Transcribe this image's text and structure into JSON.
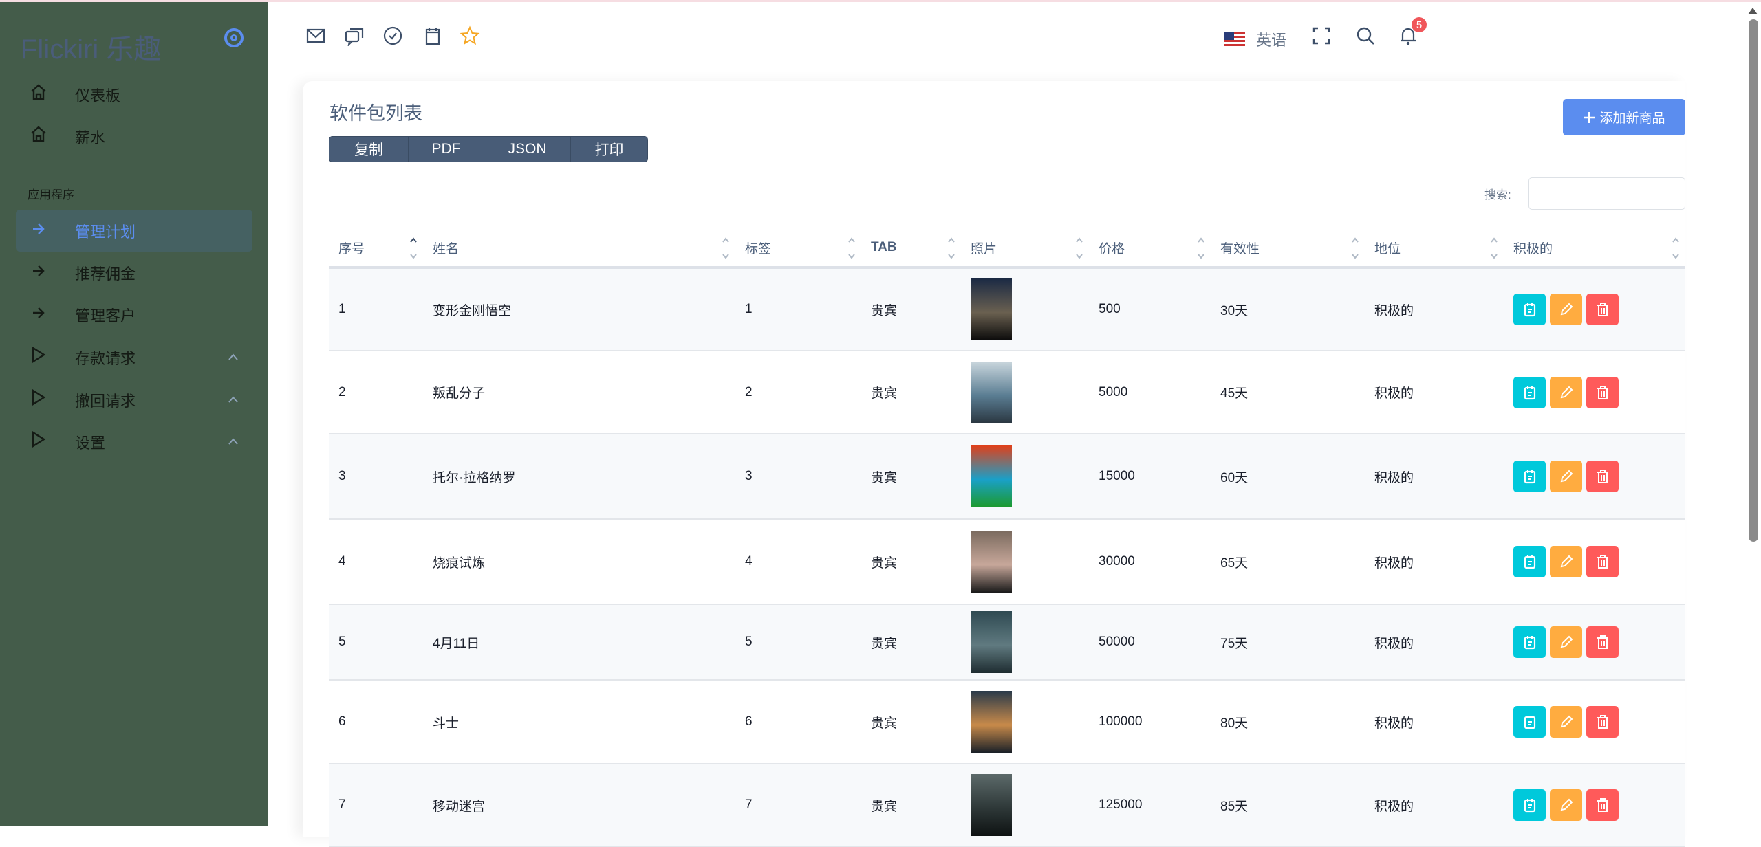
{
  "sidebar": {
    "logo": "Flickiri 乐趣",
    "items": [
      {
        "label": "仪表板",
        "icon": "home-icon"
      },
      {
        "label": "薪水",
        "icon": "home-icon"
      }
    ],
    "section_label": "应用程序",
    "app_items": [
      {
        "label": "管理计划",
        "icon": "arrow-right-icon",
        "active": true
      },
      {
        "label": "推荐佣金",
        "icon": "arrow-right-icon"
      },
      {
        "label": "管理客户",
        "icon": "arrow-right-icon"
      },
      {
        "label": "存款请求",
        "icon": "play-icon",
        "expandable": true
      },
      {
        "label": "撤回请求",
        "icon": "play-icon",
        "expandable": true
      },
      {
        "label": "设置",
        "icon": "play-icon",
        "expandable": true
      }
    ]
  },
  "topbar": {
    "language": "英语",
    "notification_count": "5"
  },
  "page": {
    "title": "软件包列表",
    "export_buttons": [
      "复制",
      "PDF",
      "JSON",
      "打印"
    ],
    "add_button": "添加新商品",
    "search_label": "搜索:",
    "search_value": ""
  },
  "table": {
    "columns": [
      "序号",
      "姓名",
      "标签",
      "TAB",
      "照片",
      "价格",
      "有效性",
      "地位",
      "积极的"
    ],
    "rows": [
      {
        "id": "1",
        "name": "变形金刚悟空",
        "tag": "1",
        "tab": "贵宾",
        "price": "500",
        "validity": "30天",
        "status": "积极的",
        "poster": [
          "#1b2a44",
          "#6a6050",
          "#0b0b0b"
        ]
      },
      {
        "id": "2",
        "name": "叛乱分子",
        "tag": "2",
        "tab": "贵宾",
        "price": "5000",
        "validity": "45天",
        "status": "积极的",
        "poster": [
          "#c9d6dd",
          "#5a7d92",
          "#2a3640"
        ]
      },
      {
        "id": "3",
        "name": "托尔·拉格纳罗",
        "tag": "3",
        "tab": "贵宾",
        "price": "15000",
        "validity": "60天",
        "status": "积极的",
        "poster": [
          "#e0401a",
          "#1aa0c8",
          "#1c9a2c"
        ]
      },
      {
        "id": "4",
        "name": "烧痕试炼",
        "tag": "4",
        "tab": "贵宾",
        "price": "30000",
        "validity": "65天",
        "status": "积极的",
        "poster": [
          "#7a6a5e",
          "#c7a79a",
          "#1a1a1a"
        ]
      },
      {
        "id": "5",
        "name": "4月11日",
        "tag": "5",
        "tab": "贵宾",
        "price": "50000",
        "validity": "75天",
        "status": "积极的",
        "poster": [
          "#2f4a52",
          "#607a80",
          "#1e2c30"
        ]
      },
      {
        "id": "6",
        "name": "斗士",
        "tag": "6",
        "tab": "贵宾",
        "price": "100000",
        "validity": "80天",
        "status": "积极的",
        "poster": [
          "#2a3a4a",
          "#c88a4a",
          "#1a2028"
        ]
      },
      {
        "id": "7",
        "name": "移动迷宫",
        "tag": "7",
        "tab": "贵宾",
        "price": "125000",
        "validity": "85天",
        "status": "积极的",
        "poster": [
          "#5c6a6a",
          "#2e3838",
          "#0e1212"
        ]
      }
    ]
  },
  "colors": {
    "sidebar_bg": "#445c4a",
    "accent": "#5b8def",
    "view_button": "#00c9db",
    "edit_button": "#ffac40",
    "delete_button": "#ff5a5a"
  }
}
